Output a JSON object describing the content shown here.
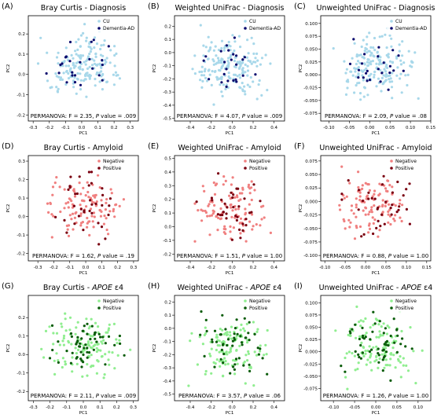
{
  "colors": {
    "blue_light": "#a8d8ea",
    "blue_dark": "#0a0a6e",
    "red_light": "#f08080",
    "red_dark": "#7a0010",
    "green_light": "#90ee90",
    "green_dark": "#0a5c0a"
  },
  "chart_data": [
    {
      "panel": "(A)",
      "title": "Bray Curtis - Diagnosis",
      "type": "scatter",
      "xlabel": "PC1",
      "ylabel": "PC2",
      "xlim": [
        -0.33,
        0.35
      ],
      "ylim": [
        -0.23,
        0.29
      ],
      "xticks": [
        "-0.3",
        "-0.2",
        "-0.1",
        "0.0",
        "0.1",
        "0.2",
        "0.3"
      ],
      "xtickvals": [
        -0.3,
        -0.2,
        -0.1,
        0.0,
        0.1,
        0.2,
        0.3
      ],
      "yticks": [
        "-0.2",
        "-0.1",
        "0.0",
        "0.1",
        "0.2"
      ],
      "ytickvals": [
        -0.2,
        -0.1,
        0.0,
        0.1,
        0.2
      ],
      "legend": [
        "CU",
        "Dementia-AD"
      ],
      "legend_position": "top-right",
      "annotation": {
        "pre": "PERMANOVA: F = 2.35, ",
        "italic": "P",
        "post": " value = .009"
      },
      "series_colors": [
        "blue_light",
        "blue_dark"
      ],
      "n": [
        180,
        24
      ],
      "seed": 11
    },
    {
      "panel": "(B)",
      "title": "Weighted UniFrac - Diagnosis",
      "type": "scatter",
      "xlabel": "PC1",
      "ylabel": "PC2",
      "xlim": [
        -0.55,
        0.5
      ],
      "ylim": [
        -0.52,
        0.28
      ],
      "xticks": [
        "-0.4",
        "-0.2",
        "0.0",
        "0.2",
        "0.4"
      ],
      "xtickvals": [
        -0.4,
        -0.2,
        0.0,
        0.2,
        0.4
      ],
      "yticks": [
        "-0.5",
        "-0.4",
        "-0.3",
        "-0.2",
        "-0.1",
        "0.0",
        "0.1",
        "0.2"
      ],
      "ytickvals": [
        -0.5,
        -0.4,
        -0.3,
        -0.2,
        -0.1,
        0.0,
        0.1,
        0.2
      ],
      "legend": [
        "CU",
        "Dementia-AD"
      ],
      "legend_position": "top-right",
      "annotation": {
        "pre": "PERMANOVA: F = 4.07, ",
        "italic": "P",
        "post": " value = .009"
      },
      "series_colors": [
        "blue_light",
        "blue_dark"
      ],
      "n": [
        180,
        24
      ],
      "seed": 23
    },
    {
      "panel": "(C)",
      "title": "Unweighted UniFrac - Diagnosis",
      "type": "scatter",
      "xlabel": "PC1",
      "ylabel": "PC2",
      "xlim": [
        -0.12,
        0.15
      ],
      "ylim": [
        -0.09,
        0.115
      ],
      "xticks": [
        "-0.10",
        "-0.05",
        "0.00",
        "0.05",
        "0.10",
        "0.15"
      ],
      "xtickvals": [
        -0.1,
        -0.05,
        0.0,
        0.05,
        0.1,
        0.15
      ],
      "yticks": [
        "-0.075",
        "-0.050",
        "-0.025",
        "0.000",
        "0.025",
        "0.050",
        "0.075",
        "0.100"
      ],
      "ytickvals": [
        -0.075,
        -0.05,
        -0.025,
        0.0,
        0.025,
        0.05,
        0.075,
        0.1
      ],
      "legend": [
        "CU",
        "Dementia-AD"
      ],
      "legend_position": "top-right",
      "annotation": {
        "pre": "PERMANOVA: F = 2.09, ",
        "italic": "P",
        "post": " value = .08"
      },
      "series_colors": [
        "blue_light",
        "blue_dark"
      ],
      "n": [
        180,
        24
      ],
      "seed": 37
    },
    {
      "panel": "(D)",
      "title": "Bray Curtis - Amyloid",
      "type": "scatter",
      "xlabel": "PC1",
      "ylabel": "PC2",
      "xlim": [
        -0.36,
        0.33
      ],
      "ylim": [
        -0.24,
        0.33
      ],
      "xticks": [
        "-0.3",
        "-0.2",
        "-0.1",
        "0.0",
        "0.1",
        "0.2",
        "0.3"
      ],
      "xtickvals": [
        -0.3,
        -0.2,
        -0.1,
        0.0,
        0.1,
        0.2,
        0.3
      ],
      "yticks": [
        "-0.2",
        "-0.1",
        "0.0",
        "0.1",
        "0.2",
        "0.3"
      ],
      "ytickvals": [
        -0.2,
        -0.1,
        0.0,
        0.1,
        0.2,
        0.3
      ],
      "legend": [
        "Negative",
        "Positive"
      ],
      "legend_position": "top-right",
      "annotation": {
        "pre": "PERMANOVA: F = 1.62, ",
        "italic": "P",
        "post": " value = .19"
      },
      "series_colors": [
        "red_light",
        "red_dark"
      ],
      "n": [
        110,
        36
      ],
      "seed": 41
    },
    {
      "panel": "(E)",
      "title": "Weighted UniFrac - Amyloid",
      "type": "scatter",
      "xlabel": "PC1",
      "ylabel": "PC2",
      "xlim": [
        -0.55,
        0.5
      ],
      "ylim": [
        -0.25,
        0.52
      ],
      "xticks": [
        "-0.4",
        "-0.2",
        "0.0",
        "0.2",
        "0.4"
      ],
      "xtickvals": [
        -0.4,
        -0.2,
        0.0,
        0.2,
        0.4
      ],
      "yticks": [
        "-0.2",
        "-0.1",
        "0.0",
        "0.1",
        "0.2",
        "0.3",
        "0.4",
        "0.5"
      ],
      "ytickvals": [
        -0.2,
        -0.1,
        0.0,
        0.1,
        0.2,
        0.3,
        0.4,
        0.5
      ],
      "legend": [
        "Negative",
        "Positive"
      ],
      "legend_position": "top-right",
      "annotation": {
        "pre": "PERMANOVA: F = 1.51, ",
        "italic": "P",
        "post": " value = 1.00"
      },
      "series_colors": [
        "red_light",
        "red_dark"
      ],
      "n": [
        110,
        36
      ],
      "seed": 53
    },
    {
      "panel": "(F)",
      "title": "Unweighted UniFrac - Amyloid",
      "type": "scatter",
      "xlabel": "PC1",
      "ylabel": "PC2",
      "xlim": [
        -0.11,
        0.16
      ],
      "ylim": [
        -0.11,
        0.085
      ],
      "xticks": [
        "-0.10",
        "-0.05",
        "0.00",
        "0.05",
        "0.10",
        "0.15"
      ],
      "xtickvals": [
        -0.1,
        -0.05,
        0.0,
        0.05,
        0.1,
        0.15
      ],
      "yticks": [
        "-0.100",
        "-0.075",
        "-0.050",
        "-0.025",
        "0.000",
        "0.025",
        "0.050",
        "0.075"
      ],
      "ytickvals": [
        -0.1,
        -0.075,
        -0.05,
        -0.025,
        0.0,
        0.025,
        0.05,
        0.075
      ],
      "legend": [
        "Negative",
        "Positive"
      ],
      "legend_position": "top-right",
      "annotation": {
        "pre": "PERMANOVA: F = 0.88, ",
        "italic": "P",
        "post": " value = 1.00"
      },
      "series_colors": [
        "red_light",
        "red_dark"
      ],
      "n": [
        110,
        36
      ],
      "seed": 67
    },
    {
      "panel": "(G)",
      "title_pre": "Bray Curtis - ",
      "title_italic": "APOE",
      "title_post": " ε4",
      "type": "scatter",
      "xlabel": "PC1",
      "ylabel": "PC2",
      "xlim": [
        -0.33,
        0.33
      ],
      "ylim": [
        -0.25,
        0.32
      ],
      "xticks": [
        "-0.3",
        "-0.2",
        "-0.1",
        "0.0",
        "0.1",
        "0.2",
        "0.3"
      ],
      "xtickvals": [
        -0.3,
        -0.2,
        -0.1,
        0.0,
        0.1,
        0.2,
        0.3
      ],
      "yticks": [
        "-0.2",
        "-0.1",
        "0.0",
        "0.1",
        "0.2"
      ],
      "ytickvals": [
        -0.2,
        -0.1,
        0.0,
        0.1,
        0.2
      ],
      "legend": [
        "Negative",
        "Positive"
      ],
      "legend_position": "top-right",
      "annotation": {
        "pre": "PERMANOVA: F = 2.11, ",
        "italic": "P",
        "post": " value = .009"
      },
      "series_colors": [
        "green_light",
        "green_dark"
      ],
      "n": [
        120,
        55
      ],
      "seed": 71
    },
    {
      "panel": "(H)",
      "title_pre": "Weighted UniFrac - ",
      "title_italic": "APOE",
      "title_post": " ε4",
      "type": "scatter",
      "xlabel": "PC1",
      "ylabel": "PC2",
      "xlim": [
        -0.55,
        0.5
      ],
      "ylim": [
        -0.55,
        0.25
      ],
      "xticks": [
        "-0.4",
        "-0.2",
        "0.0",
        "0.2",
        "0.4"
      ],
      "xtickvals": [
        -0.4,
        -0.2,
        0.0,
        0.2,
        0.4
      ],
      "yticks": [
        "-0.5",
        "-0.4",
        "-0.3",
        "-0.2",
        "-0.1",
        "0.0",
        "0.1",
        "0.2"
      ],
      "ytickvals": [
        -0.5,
        -0.4,
        -0.3,
        -0.2,
        -0.1,
        0.0,
        0.1,
        0.2
      ],
      "legend": [
        "Negative",
        "Positive"
      ],
      "legend_position": "top-right",
      "annotation": {
        "pre": "PERMANOVA: F = 3.57, ",
        "italic": "P",
        "post": " value = .06"
      },
      "series_colors": [
        "green_light",
        "green_dark"
      ],
      "n": [
        120,
        55
      ],
      "seed": 83
    },
    {
      "panel": "(I)",
      "title_pre": "Unweighted UniFrac - ",
      "title_italic": "APOE",
      "title_post": " ε4",
      "type": "scatter",
      "xlabel": "PC1",
      "ylabel": "PC2",
      "xlim": [
        -0.13,
        0.13
      ],
      "ylim": [
        -0.1,
        0.115
      ],
      "xticks": [
        "-0.10",
        "-0.05",
        "0.00",
        "0.05",
        "0.10"
      ],
      "xtickvals": [
        -0.1,
        -0.05,
        0.0,
        0.05,
        0.1
      ],
      "yticks": [
        "-0.075",
        "-0.050",
        "-0.025",
        "0.000",
        "0.025",
        "0.050",
        "0.075",
        "0.100"
      ],
      "ytickvals": [
        -0.075,
        -0.05,
        -0.025,
        0.0,
        0.025,
        0.05,
        0.075,
        0.1
      ],
      "legend": [
        "Negative",
        "Positive"
      ],
      "legend_position": "top-right",
      "annotation": {
        "pre": "PERMANOVA: F = 1.26, ",
        "italic": "P",
        "post": " value = 1.00"
      },
      "series_colors": [
        "green_light",
        "green_dark"
      ],
      "n": [
        120,
        55
      ],
      "seed": 97
    }
  ]
}
